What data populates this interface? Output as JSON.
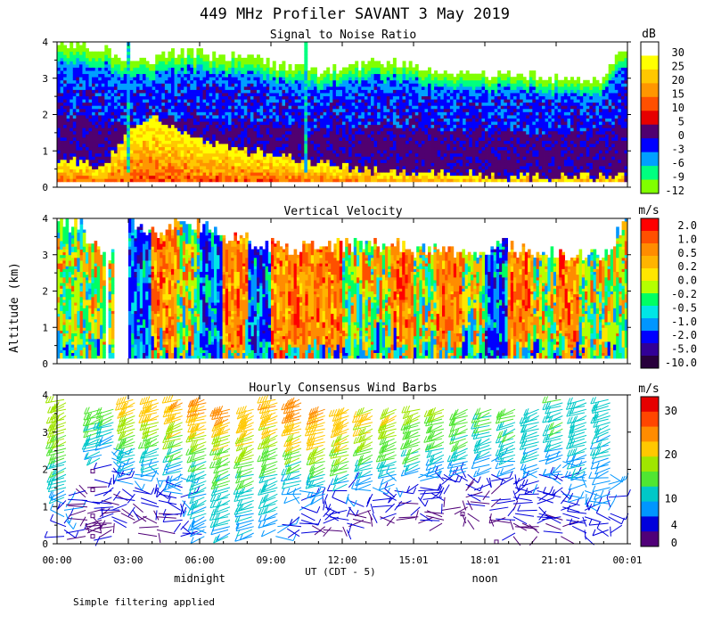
{
  "title": "449 MHz Profiler SAVANT  3 May 2019",
  "y_axis_label": "Altitude (km)",
  "x_axis_label": "UT (CDT - 5)",
  "x_ticks": [
    "00:00",
    "03:00",
    "06:00",
    "09:00",
    "12:00",
    "15:01",
    "18:01",
    "21:01",
    "00:01"
  ],
  "x_hours": [
    0,
    3,
    6,
    9,
    12,
    15,
    18,
    21,
    24
  ],
  "y_ticks": [
    "0",
    "1",
    "2",
    "3",
    "4"
  ],
  "markers": [
    {
      "label": "midnight",
      "hour": 6
    },
    {
      "label": "noon",
      "hour": 18
    }
  ],
  "footnote": "Simple filtering applied",
  "colors": {
    "background": "#ffffff",
    "axes": "#000000",
    "gap": "#ffffff"
  },
  "chart_data": [
    {
      "type": "heatmap",
      "title": "Signal to Noise Ratio",
      "xlabel": "UT (CDT - 5)",
      "ylabel": "Altitude (km)",
      "xlim": [
        0,
        24
      ],
      "ylim": [
        0,
        4
      ],
      "colorbar": {
        "unit": "dB",
        "labels": [
          "30",
          "25",
          "20",
          "15",
          "10",
          "5",
          "0",
          "-3",
          "-6",
          "-9",
          "-12"
        ],
        "colors": [
          "#ffffff",
          "#ffff00",
          "#ffc800",
          "#ff9600",
          "#ff5000",
          "#e60000",
          "#500070",
          "#0000ff",
          "#00a0ff",
          "#00ff80",
          "#80ff00"
        ]
      },
      "profile": {
        "top_km": [
          3.9,
          3.9,
          3.8,
          3.4,
          3.5,
          3.7,
          3.7,
          3.6,
          3.6,
          3.4,
          3.3,
          3.2,
          3.3,
          3.4,
          3.4,
          3.4,
          3.2,
          3.1,
          3.1,
          3.1,
          3.1,
          3.0,
          3.0,
          3.0,
          3.9
        ],
        "warm_top_km": [
          0.7,
          0.7,
          0.6,
          1.5,
          2.0,
          1.6,
          1.3,
          1.1,
          1.0,
          0.9,
          0.8,
          0.7,
          0.6,
          0.5,
          0.4,
          0.4,
          0.4,
          0.4,
          0.3,
          0.3,
          0.3,
          0.3,
          0.3,
          0.3,
          0.3
        ]
      }
    },
    {
      "type": "heatmap",
      "title": "Vertical Velocity",
      "xlabel": "UT (CDT - 5)",
      "ylabel": "Altitude (km)",
      "xlim": [
        0,
        24
      ],
      "ylim": [
        0,
        4
      ],
      "colorbar": {
        "unit": "m/s",
        "labels": [
          "2.0",
          "1.0",
          "0.5",
          "0.2",
          "0.0",
          "-0.2",
          "-0.5",
          "-1.0",
          "-2.0",
          "-5.0",
          "-10.0"
        ],
        "colors": [
          "#ff0000",
          "#ff5000",
          "#ff8c00",
          "#ffb400",
          "#ffe600",
          "#b4ff00",
          "#00ff64",
          "#00e6e6",
          "#0096ff",
          "#0000ff",
          "#320096",
          "#28003c"
        ]
      },
      "profile": {
        "top_km": [
          3.9,
          3.8,
          2.8,
          3.9,
          3.6,
          3.8,
          3.8,
          3.5,
          3.4,
          3.2,
          3.1,
          3.2,
          3.3,
          3.2,
          3.3,
          3.1,
          3.1,
          3.0,
          3.1,
          3.2,
          3.1,
          3.0,
          3.0,
          3.0,
          3.9
        ],
        "dominant": [
          "mixed",
          "mixed",
          "gap",
          "blue",
          "orange",
          "mixed",
          "blue",
          "orange",
          "blue",
          "orange",
          "orange",
          "orange",
          "mixed",
          "mixed",
          "orange",
          "mixed",
          "orange",
          "mixed",
          "blue",
          "orange",
          "mixed",
          "orange",
          "mixed",
          "mixed"
        ]
      }
    },
    {
      "type": "scatter",
      "title": "Hourly Consensus Wind Barbs",
      "xlabel": "UT (CDT - 5)",
      "ylabel": "Altitude (km)",
      "xlim": [
        0,
        24
      ],
      "ylim": [
        0,
        4
      ],
      "colorbar": {
        "unit": "m/s",
        "labels": [
          "30",
          "20",
          "10",
          "4",
          "0"
        ],
        "label_values": [
          30,
          20,
          10,
          4,
          0
        ],
        "colors": [
          "#e60000",
          "#ff4600",
          "#ff8c00",
          "#ffc800",
          "#a0e600",
          "#50e632",
          "#00c8c8",
          "#0096ff",
          "#0000dc",
          "#500078"
        ]
      },
      "barbs": {
        "hours": [
          0.3,
          1.2,
          1.8,
          2.3,
          3.2,
          4.2,
          5.2,
          6.2,
          7.2,
          8.2,
          9.2,
          10.2,
          11.2,
          12.2,
          13.2,
          14.2,
          15.2,
          16.2,
          17.2,
          18.2,
          19.2,
          20.2,
          21.2,
          22.2,
          23.2
        ],
        "levels_km": [
          0.2,
          0.55,
          0.9,
          1.25,
          1.6,
          1.95,
          2.3,
          2.65,
          3.0,
          3.35,
          3.7
        ],
        "speed_ms": [
          [
            5,
            6,
            7,
            9,
            11,
            13,
            15,
            16,
            17,
            18,
            17
          ],
          [
            2,
            2,
            3,
            3,
            null,
            null,
            null,
            null,
            null,
            null,
            null
          ],
          [
            3,
            3,
            4,
            null,
            null,
            null,
            10,
            12,
            13,
            14,
            null
          ],
          [
            3,
            3,
            4,
            4,
            5,
            6,
            8,
            10,
            12,
            14,
            null
          ],
          [
            null,
            2,
            3,
            5,
            7,
            9,
            12,
            15,
            17,
            19,
            20
          ],
          [
            2,
            3,
            4,
            5,
            7,
            9,
            12,
            15,
            18,
            20,
            21
          ],
          [
            4,
            5,
            6,
            7,
            8,
            10,
            13,
            16,
            19,
            21,
            22
          ],
          [
            8,
            9,
            10,
            10,
            11,
            12,
            14,
            17,
            20,
            22,
            23
          ],
          [
            10,
            11,
            11,
            12,
            13,
            14,
            16,
            19,
            21,
            23,
            null
          ],
          [
            9,
            10,
            11,
            12,
            13,
            15,
            17,
            19,
            21,
            22,
            null
          ],
          [
            8,
            9,
            10,
            11,
            12,
            14,
            16,
            18,
            20,
            21,
            22
          ],
          [
            4,
            5,
            6,
            8,
            10,
            13,
            16,
            19,
            22,
            23,
            24
          ],
          [
            3,
            4,
            5,
            8,
            11,
            14,
            17,
            20,
            22,
            23,
            null
          ],
          [
            3,
            4,
            5,
            7,
            10,
            13,
            16,
            19,
            21,
            22,
            null
          ],
          [
            null,
            3,
            4,
            6,
            9,
            12,
            15,
            17,
            19,
            20,
            null
          ],
          [
            null,
            3,
            4,
            6,
            8,
            11,
            14,
            16,
            18,
            19,
            null
          ],
          [
            null,
            3,
            4,
            5,
            7,
            10,
            13,
            15,
            16,
            17,
            null
          ],
          [
            null,
            2,
            3,
            4,
            6,
            9,
            12,
            14,
            15,
            16,
            null
          ],
          [
            null,
            2,
            3,
            4,
            6,
            8,
            11,
            13,
            14,
            14,
            null
          ],
          [
            null,
            2,
            3,
            4,
            5,
            8,
            10,
            12,
            13,
            13,
            null
          ],
          [
            3,
            4,
            4,
            5,
            6,
            8,
            10,
            12,
            13,
            13,
            null
          ],
          [
            3,
            4,
            5,
            5,
            6,
            8,
            10,
            12,
            12,
            12,
            null
          ],
          [
            3,
            4,
            5,
            6,
            7,
            8,
            9,
            11,
            12,
            12,
            12
          ],
          [
            4,
            5,
            6,
            7,
            8,
            9,
            10,
            11,
            11,
            11,
            11
          ],
          [
            5,
            6,
            7,
            7,
            8,
            9,
            10,
            10,
            11,
            11,
            11
          ]
        ]
      }
    }
  ]
}
